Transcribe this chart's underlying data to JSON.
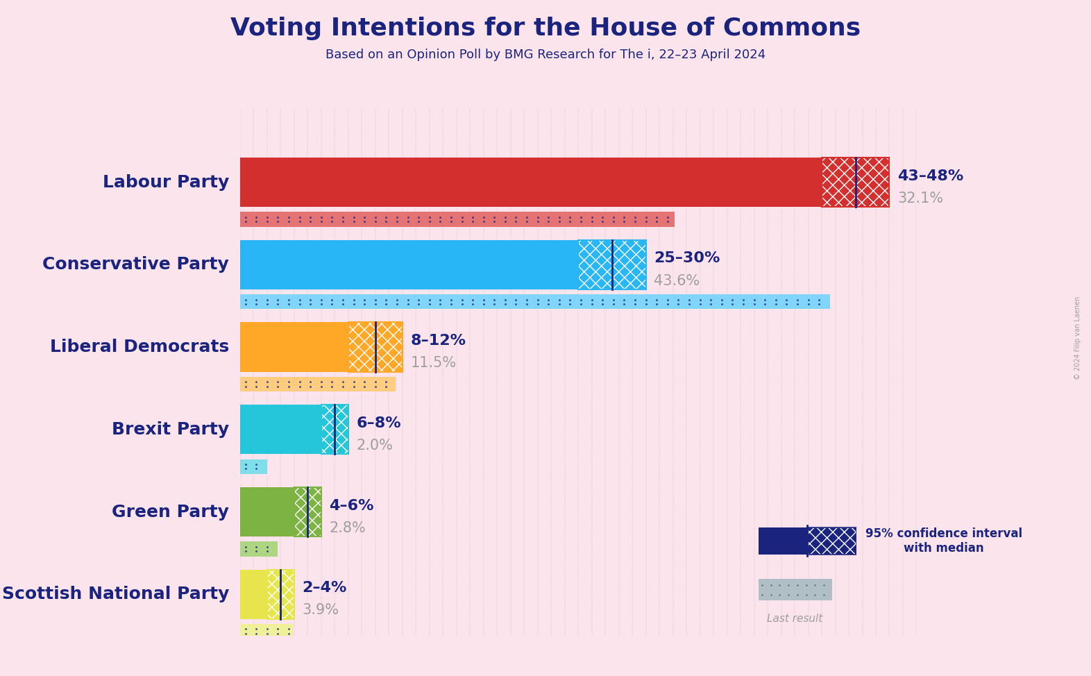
{
  "title": "Voting Intentions for the House of Commons",
  "subtitle": "Based on an Opinion Poll by BMG Research for The i, 22–23 April 2024",
  "copyright": "© 2024 Filip van Laenen",
  "background_color": "#fce4ec",
  "title_color": "#1a237e",
  "subtitle_color": "#1a237e",
  "grey_text_color": "#9e9e9e",
  "grid_color": "#1a237e",
  "parties": [
    {
      "name": "Labour Party",
      "ci_low": 43,
      "ci_high": 48,
      "last_result": 32.1,
      "color": "#d32f2f",
      "color_light": "#e57373",
      "label": "43–48%",
      "last_label": "32.1%"
    },
    {
      "name": "Conservative Party",
      "ci_low": 25,
      "ci_high": 30,
      "last_result": 43.6,
      "color": "#29b6f6",
      "color_light": "#81d4fa",
      "label": "25–30%",
      "last_label": "43.6%"
    },
    {
      "name": "Liberal Democrats",
      "ci_low": 8,
      "ci_high": 12,
      "last_result": 11.5,
      "color": "#ffa726",
      "color_light": "#ffcc80",
      "label": "8–12%",
      "last_label": "11.5%"
    },
    {
      "name": "Brexit Party",
      "ci_low": 6,
      "ci_high": 8,
      "last_result": 2.0,
      "color": "#26c6da",
      "color_light": "#80deea",
      "label": "6–8%",
      "last_label": "2.0%"
    },
    {
      "name": "Green Party",
      "ci_low": 4,
      "ci_high": 6,
      "last_result": 2.8,
      "color": "#7cb342",
      "color_light": "#aed581",
      "label": "4–6%",
      "last_label": "2.8%"
    },
    {
      "name": "Scottish National Party",
      "ci_low": 2,
      "ci_high": 4,
      "last_result": 3.9,
      "color": "#e6e64c",
      "color_light": "#f0f09a",
      "label": "2–4%",
      "last_label": "3.9%"
    }
  ],
  "xlim_max": 50,
  "title_fontsize": 26,
  "subtitle_fontsize": 13,
  "party_fontsize": 18,
  "label_fontsize": 16
}
